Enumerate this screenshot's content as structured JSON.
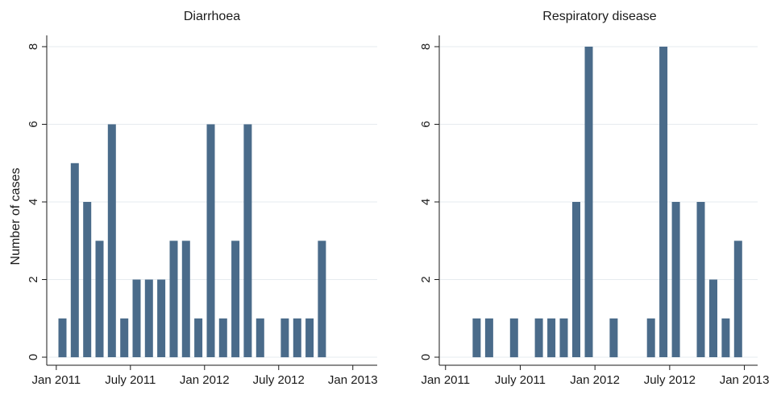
{
  "chart_data": [
    {
      "type": "bar",
      "title": "Diarrhoea",
      "xlabel": "",
      "ylabel": "Number of cases",
      "ylim": [
        0,
        8
      ],
      "y_ticks": [
        "0",
        "2",
        "4",
        "6",
        "8"
      ],
      "x_ticks": [
        "Jan 2011",
        "July 2011",
        "Jan 2012",
        "July 2012",
        "Jan 2013"
      ],
      "grid": true,
      "x": [
        "2011-01",
        "2011-02",
        "2011-03",
        "2011-04",
        "2011-05",
        "2011-06",
        "2011-07",
        "2011-08",
        "2011-09",
        "2011-10",
        "2011-11",
        "2011-12",
        "2012-01",
        "2012-02",
        "2012-03",
        "2012-04",
        "2012-05",
        "2012-06",
        "2012-07",
        "2012-08",
        "2012-09",
        "2012-10",
        "2012-11",
        "2012-12"
      ],
      "values": [
        1,
        5,
        4,
        3,
        6,
        1,
        2,
        2,
        2,
        3,
        3,
        1,
        6,
        1,
        3,
        6,
        1,
        0,
        1,
        1,
        1,
        3,
        0,
        0
      ],
      "bar_color": "#4a6b8a"
    },
    {
      "type": "bar",
      "title": "Respiratory disease",
      "xlabel": "",
      "ylabel": "",
      "ylim": [
        0,
        8
      ],
      "y_ticks": [
        "0",
        "2",
        "4",
        "6",
        "8"
      ],
      "x_ticks": [
        "Jan 2011",
        "July 2011",
        "Jan 2012",
        "July 2012",
        "Jan 2013"
      ],
      "grid": true,
      "x": [
        "2011-01",
        "2011-02",
        "2011-03",
        "2011-04",
        "2011-05",
        "2011-06",
        "2011-07",
        "2011-08",
        "2011-09",
        "2011-10",
        "2011-11",
        "2011-12",
        "2012-01",
        "2012-02",
        "2012-03",
        "2012-04",
        "2012-05",
        "2012-06",
        "2012-07",
        "2012-08",
        "2012-09",
        "2012-10",
        "2012-11",
        "2012-12"
      ],
      "values": [
        0,
        0,
        1,
        1,
        0,
        1,
        0,
        1,
        1,
        1,
        4,
        8,
        0,
        1,
        0,
        0,
        1,
        8,
        4,
        0,
        4,
        2,
        1,
        3
      ],
      "bar_color": "#4a6b8a"
    }
  ]
}
